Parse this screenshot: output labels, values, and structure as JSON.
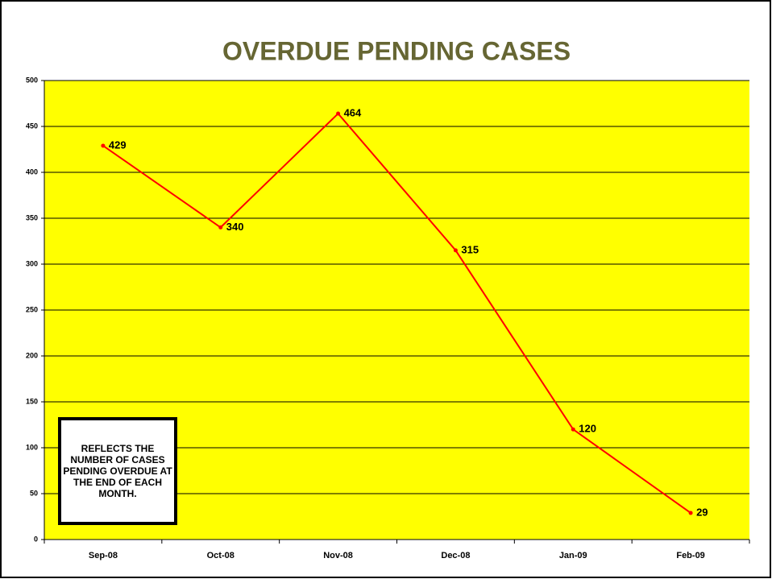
{
  "chart_data": {
    "type": "line",
    "title": "OVERDUE PENDING CASES",
    "categories": [
      "Sep-08",
      "Oct-08",
      "Nov-08",
      "Dec-08",
      "Jan-09",
      "Feb-09"
    ],
    "series": [
      {
        "name": "Overdue pending cases",
        "color": "#ff0000",
        "values": [
          429,
          340,
          464,
          315,
          120,
          29
        ]
      }
    ],
    "ylim": [
      0,
      500
    ],
    "yticks": [
      0,
      50,
      100,
      150,
      200,
      250,
      300,
      350,
      400,
      450,
      500
    ],
    "grid": true,
    "background": "#ffff00",
    "annotation": "REFLECTS THE NUMBER OF CASES PENDING OVERDUE AT THE END OF EACH MONTH."
  }
}
